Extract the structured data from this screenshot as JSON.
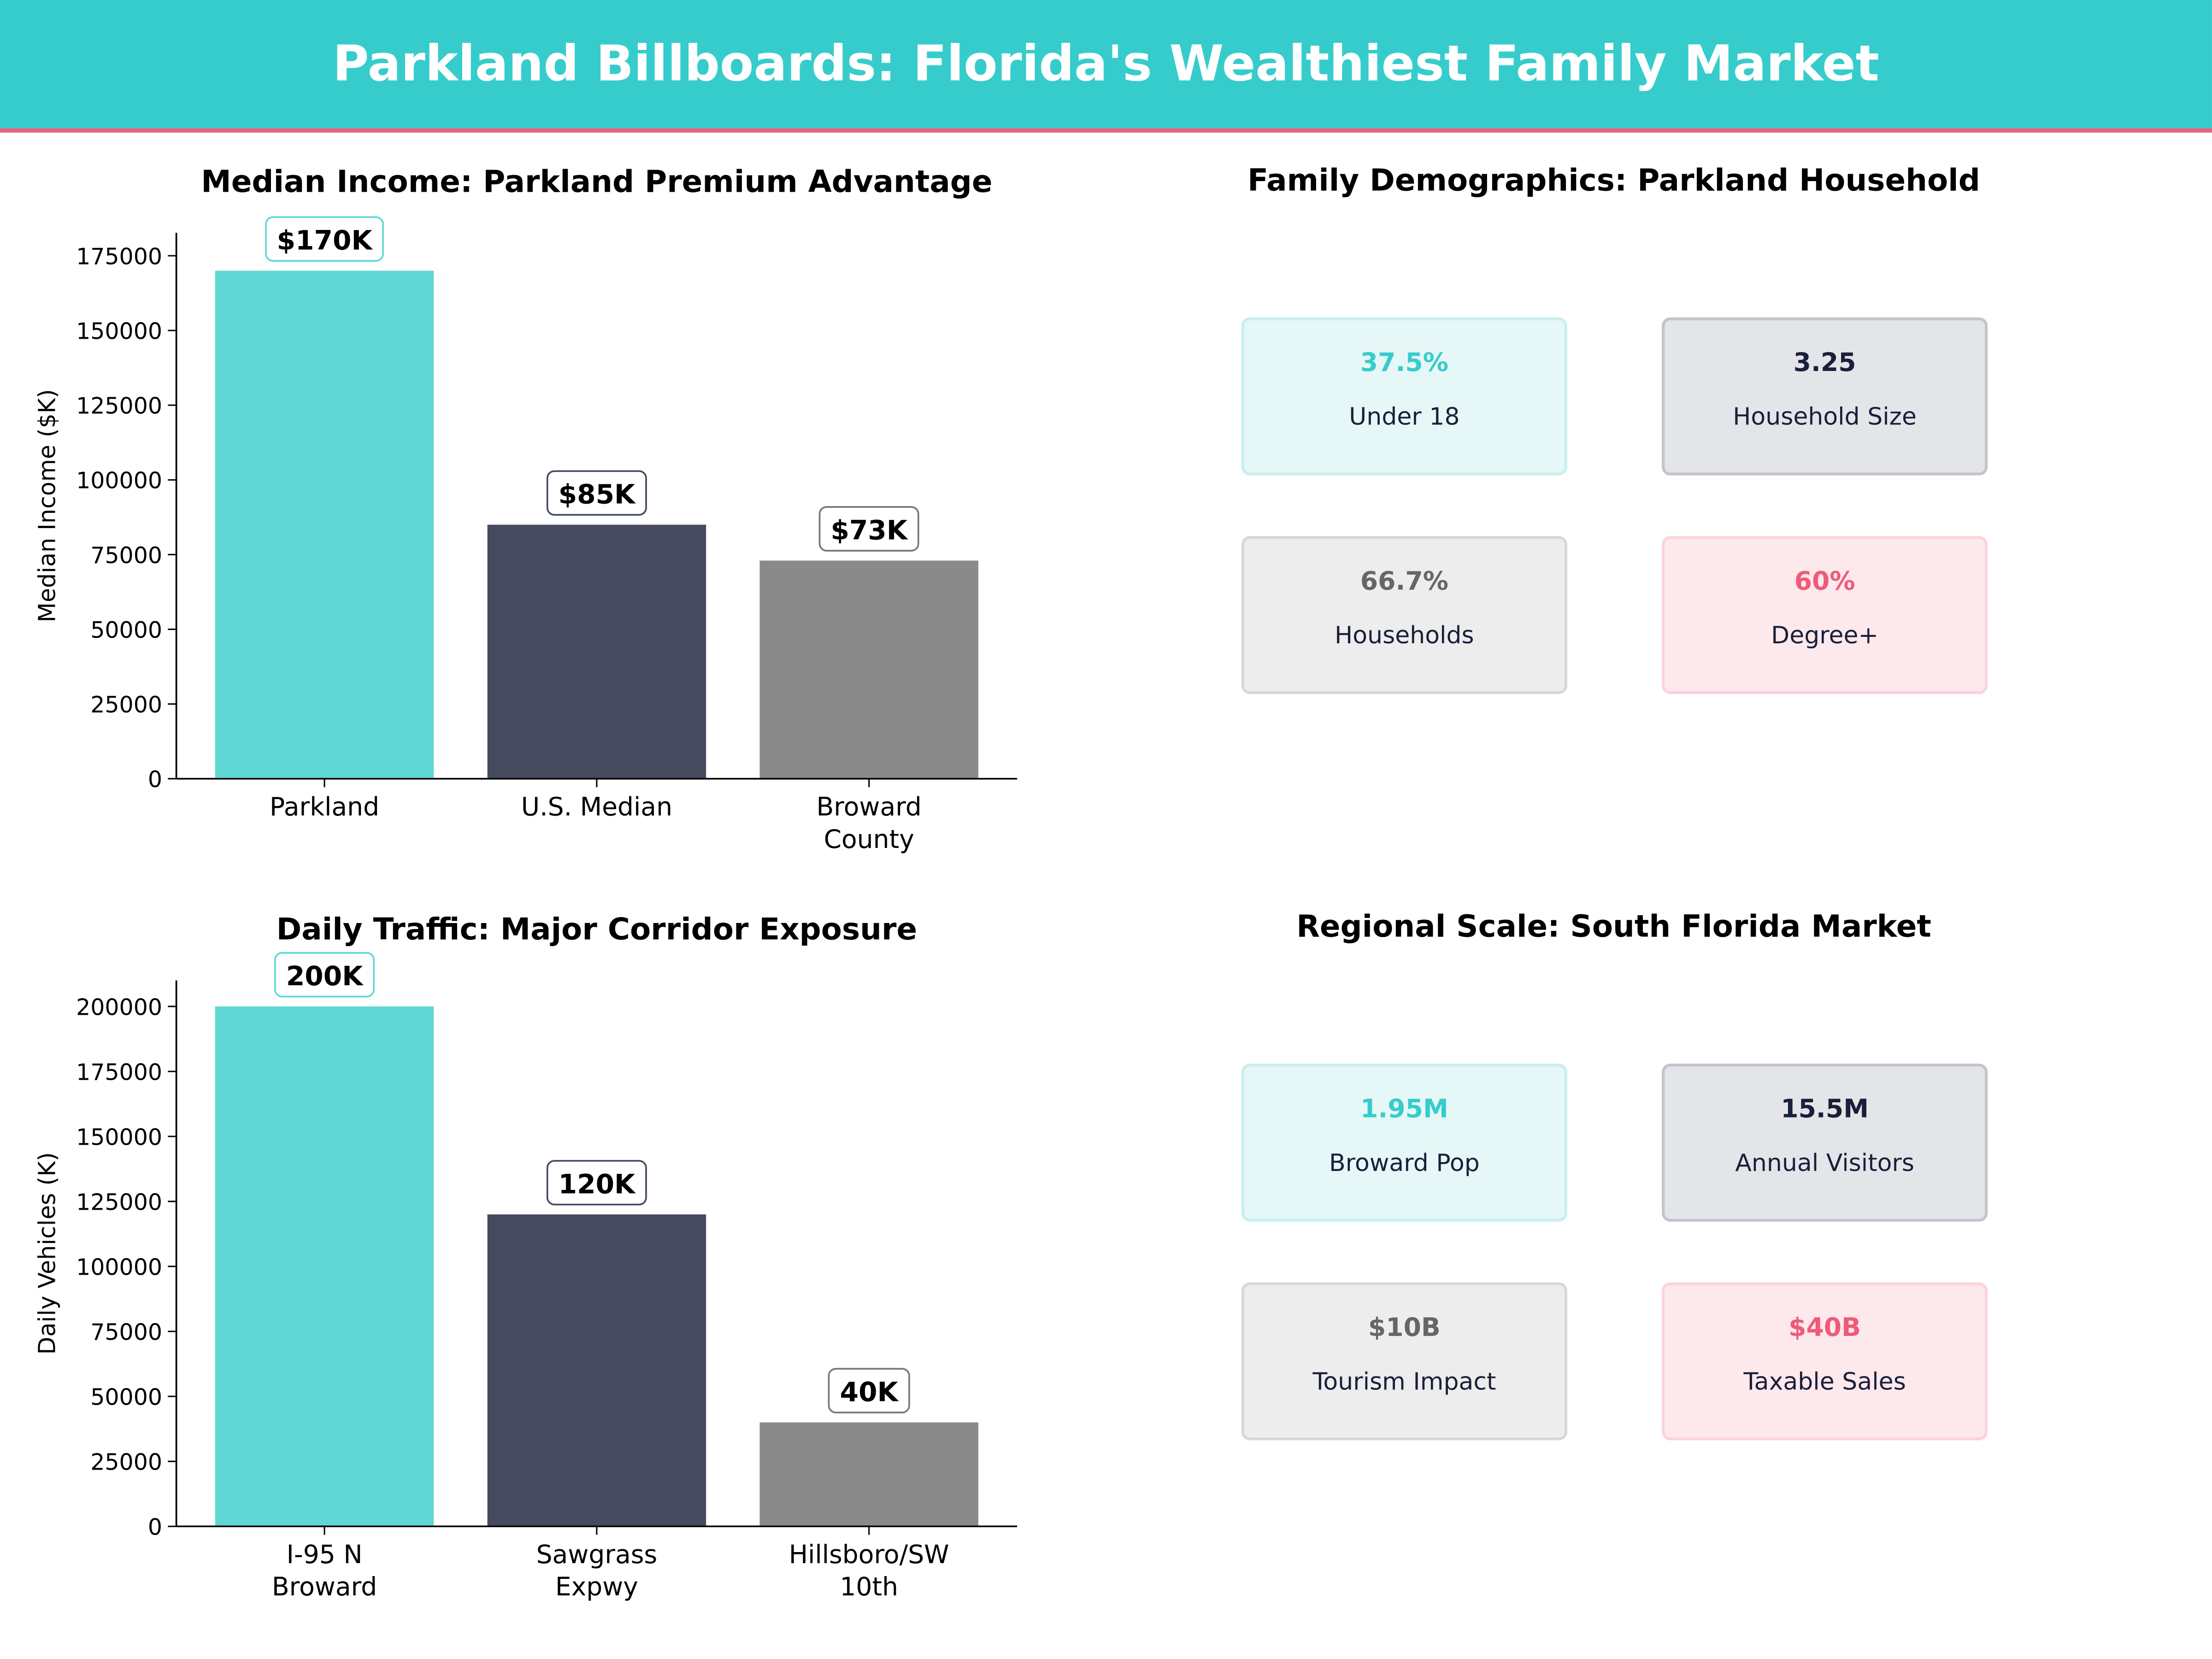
{
  "title": "Parkland Billboards: Florida's Wealthiest Family Market",
  "colors": {
    "header": "#36cccc",
    "accent_line": "#ee6078",
    "teal": "#5fd8d5",
    "navy": "#464a5f",
    "gray": "#8a8a8a"
  },
  "chart_data": [
    {
      "type": "bar",
      "title": "Median Income: Parkland Premium Advantage",
      "ylabel": "Median Income ($K)",
      "categories": [
        "Parkland",
        "U.S. Median",
        "Broward\nCounty"
      ],
      "values": [
        170000,
        85000,
        73000
      ],
      "data_labels": [
        "$170K",
        "$85K",
        "$73K"
      ],
      "yticks": [
        0,
        25000,
        50000,
        75000,
        100000,
        125000,
        150000,
        175000
      ],
      "ylim": [
        0,
        182700
      ],
      "grid": false
    },
    {
      "type": "bar",
      "title": "Daily Traffic: Major Corridor Exposure",
      "ylabel": "Daily Vehicles (K)",
      "categories": [
        "I-95 N\nBroward",
        "Sawgrass\nExpwy",
        "Hillsboro/SW\n10th"
      ],
      "values": [
        200000,
        120000,
        40000
      ],
      "data_labels": [
        "200K",
        "120K",
        "40K"
      ],
      "yticks": [
        0,
        25000,
        50000,
        75000,
        100000,
        125000,
        150000,
        175000,
        200000
      ],
      "ylim": [
        0,
        210000
      ],
      "grid": false
    }
  ],
  "panels": [
    {
      "title": "Family Demographics: Parkland Household",
      "cards": [
        {
          "value": "37.5%",
          "label": "Under 18",
          "theme": "teal"
        },
        {
          "value": "3.25",
          "label": "Household Size",
          "theme": "navy"
        },
        {
          "value": "66.7%",
          "label": "Households",
          "theme": "gray"
        },
        {
          "value": "60%",
          "label": "Degree+",
          "theme": "pink"
        }
      ]
    },
    {
      "title": "Regional Scale: South Florida Market",
      "cards": [
        {
          "value": "1.95M",
          "label": "Broward Pop",
          "theme": "teal"
        },
        {
          "value": "15.5M",
          "label": "Annual Visitors",
          "theme": "navy"
        },
        {
          "value": "$10B",
          "label": "Tourism Impact",
          "theme": "gray"
        },
        {
          "value": "$40B",
          "label": "Taxable Sales",
          "theme": "pink"
        }
      ]
    }
  ]
}
